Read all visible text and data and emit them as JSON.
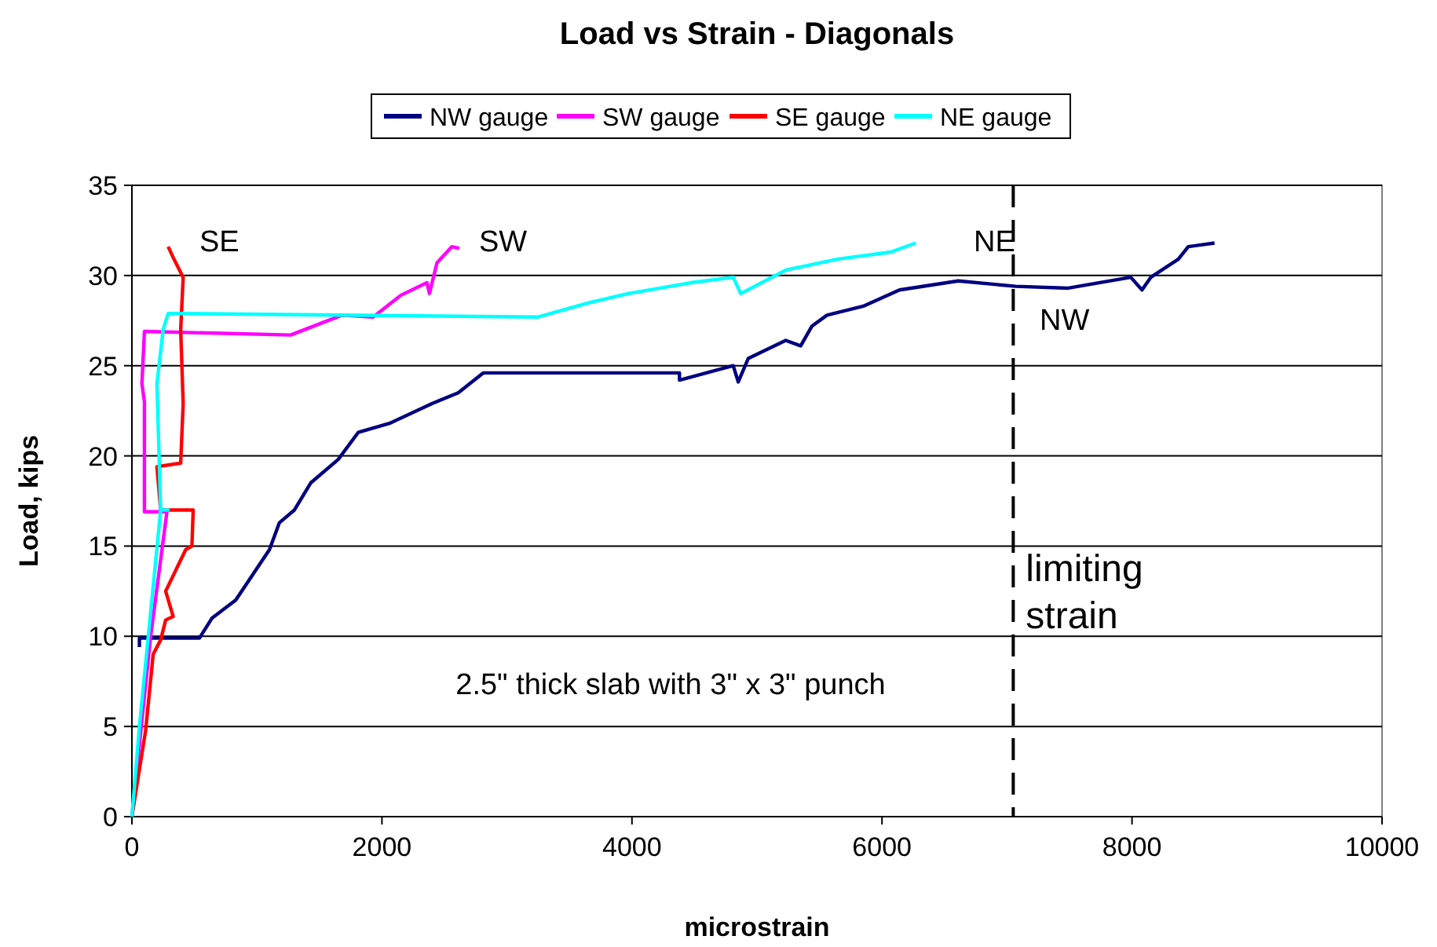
{
  "chart_data": {
    "type": "line",
    "title": "Load vs Strain - Diagonals",
    "xlabel": "microstrain",
    "ylabel": "Load, kips",
    "xlim": [
      0,
      10000
    ],
    "xticks": [
      0,
      2000,
      4000,
      6000,
      8000,
      10000
    ],
    "ylim": [
      0,
      35
    ],
    "yticks": [
      0,
      5,
      10,
      15,
      20,
      25,
      30,
      35
    ],
    "grid": "y",
    "legend": "top",
    "line_style": "solid",
    "series": [
      {
        "name": "NW gauge",
        "color": "#000080",
        "x": [
          60,
          60,
          540,
          640,
          830,
          1100,
          1180,
          1300,
          1430,
          1650,
          1810,
          2060,
          2400,
          2610,
          2810,
          3970,
          4380,
          4380,
          4810,
          4850,
          4930,
          5230,
          5350,
          5440,
          5560,
          5850,
          6140,
          6610,
          7070,
          7490,
          7990,
          8080,
          8150,
          8370,
          8450,
          8660
        ],
        "values": [
          9.4,
          9.9,
          9.9,
          11.0,
          12.0,
          14.8,
          16.3,
          17.0,
          18.5,
          19.8,
          21.3,
          21.8,
          22.9,
          23.5,
          24.6,
          24.6,
          24.6,
          24.2,
          25.0,
          24.1,
          25.4,
          26.4,
          26.1,
          27.2,
          27.8,
          28.3,
          29.2,
          29.7,
          29.4,
          29.3,
          29.9,
          29.2,
          29.9,
          30.9,
          31.6,
          31.8
        ]
      },
      {
        "name": "SW gauge",
        "color": "#ff00ff",
        "x": [
          0,
          150,
          280,
          100,
          100,
          80,
          100,
          1270,
          1680,
          1930,
          2150,
          2360,
          2380,
          2440,
          2560,
          2620
        ],
        "values": [
          0,
          10,
          16.9,
          16.9,
          23.0,
          24.0,
          26.9,
          26.7,
          27.8,
          27.7,
          28.9,
          29.6,
          29.0,
          30.7,
          31.6,
          31.5
        ]
      },
      {
        "name": "SE gauge",
        "color": "#ff0000",
        "x": [
          0,
          110,
          170,
          230,
          270,
          330,
          270,
          430,
          480,
          490,
          230,
          200,
          390,
          410,
          390,
          410,
          330,
          290
        ],
        "values": [
          0,
          4.8,
          9.0,
          9.8,
          10.9,
          11.1,
          12.5,
          14.8,
          15.0,
          17.0,
          17.0,
          19.4,
          19.6,
          22.9,
          27.0,
          29.9,
          31.0,
          31.6
        ]
      },
      {
        "name": "NE gauge",
        "color": "#00ffff",
        "x": [
          0,
          60,
          230,
          290,
          230,
          200,
          250,
          290,
          3250,
          3660,
          3970,
          4470,
          4810,
          4870,
          5230,
          5640,
          6070,
          6270
        ],
        "values": [
          0,
          5.0,
          17.0,
          17.0,
          17.0,
          24.0,
          27.0,
          27.9,
          27.7,
          28.5,
          29.0,
          29.6,
          29.9,
          29.0,
          30.3,
          30.9,
          31.3,
          31.8
        ]
      }
    ],
    "ref_lines": [
      {
        "axis": "x",
        "value": 7050,
        "label": "limiting\nstrain",
        "color": "#000000",
        "line_style": "dashed"
      }
    ],
    "annotations": [
      "SE",
      "SW",
      "NE",
      "NW",
      "2.5\" thick slab with 3\" x 3\" punch"
    ]
  }
}
